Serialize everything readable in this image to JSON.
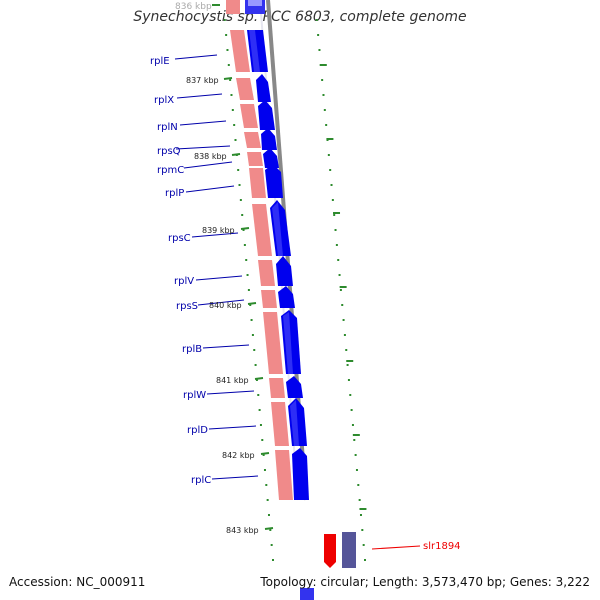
{
  "title": "Synechocystis sp. PCC 6803, complete genome",
  "top_partial_label": "836 kbp",
  "accession": "Accession: NC_000911",
  "summary": "Topology: circular; Length: 3,573,470 bp; Genes: 3,222",
  "colors": {
    "gene_blue": "#0000ee",
    "gene_pink": "#f08a8a",
    "backbone": "#888888",
    "tick_green": "#2e8b2e",
    "label_blue": "#0000aa",
    "highlight_red": "#ee0000",
    "highlight_purple": "#555599"
  },
  "genes": [
    "rplE",
    "rplX",
    "rplN",
    "rpsQ",
    "rpmC",
    "rplP",
    "rpsC",
    "rplV",
    "rpsS",
    "rplB",
    "rplW",
    "rplD",
    "rplC"
  ],
  "kbp_labels": [
    "837 kbp",
    "838 kbp",
    "839 kbp",
    "840 kbp",
    "841 kbp",
    "842 kbp",
    "843 kbp"
  ],
  "highlight_gene": "slr1894"
}
